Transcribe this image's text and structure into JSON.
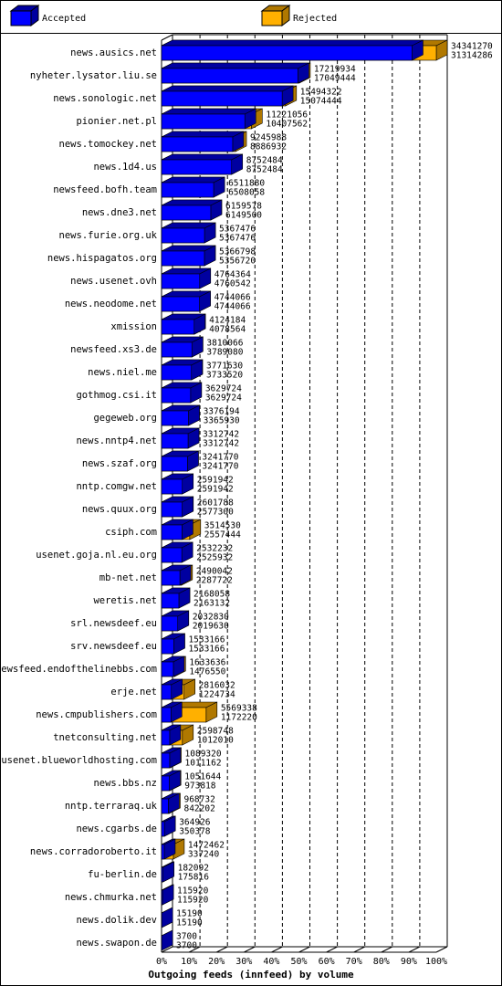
{
  "chart_data": {
    "type": "bar3d-overlap",
    "orientation": "horizontal",
    "title": "Outgoing feeds (innfeed) by volume",
    "categories": [
      "news.ausics.net",
      "nyheter.lysator.liu.se",
      "news.sonologic.net",
      "pionier.net.pl",
      "news.tomockey.net",
      "news.1d4.us",
      "newsfeed.bofh.team",
      "news.dne3.net",
      "news.furie.org.uk",
      "news.hispagatos.org",
      "news.usenet.ovh",
      "news.neodome.net",
      "xmission",
      "newsfeed.xs3.de",
      "news.niel.me",
      "gothmog.csi.it",
      "gegeweb.org",
      "news.nntp4.net",
      "news.szaf.org",
      "nntp.comgw.net",
      "news.quux.org",
      "csiph.com",
      "usenet.goja.nl.eu.org",
      "mb-net.net",
      "weretis.net",
      "srl.newsdeef.eu",
      "srv.newsdeef.eu",
      "newsfeed.endofthelinebbs.com",
      "erje.net",
      "news.cmpublishers.com",
      "tnetconsulting.net",
      "usenet.blueworldhosting.com",
      "news.bbs.nz",
      "nntp.terraraq.uk",
      "news.cgarbs.de",
      "news.corradoroberto.it",
      "fu-berlin.de",
      "news.chmurka.net",
      "news.dolik.dev",
      "news.swapon.de"
    ],
    "series": [
      {
        "name": "Accepted",
        "color": "#0000ff",
        "shade": "#0000a0",
        "values": [
          31314286,
          17049444,
          15074444,
          10407562,
          8886932,
          8752484,
          6508058,
          6149500,
          5367476,
          5356720,
          4760542,
          4744066,
          4078564,
          3789080,
          3733520,
          3629724,
          3365930,
          3312742,
          3241770,
          2591942,
          2577300,
          2557444,
          2525932,
          2287722,
          2163132,
          2019630,
          1533166,
          1476550,
          1224734,
          1172220,
          1012010,
          1011162,
          973818,
          842202,
          350378,
          337240,
          175816,
          115920,
          15190,
          3700
        ]
      },
      {
        "name": "Rejected",
        "color": "#ffb000",
        "shade": "#b07800",
        "values": [
          34341270,
          17219934,
          15494322,
          11221056,
          9245988,
          8752484,
          6511880,
          6159578,
          5367476,
          5366798,
          4764364,
          4744066,
          4124184,
          3810066,
          3771630,
          3629724,
          3376194,
          3312742,
          3241770,
          2591942,
          2601788,
          3514530,
          2532232,
          2490042,
          2168058,
          2032830,
          1533166,
          1633636,
          2816032,
          5569338,
          2598748,
          1089320,
          1051644,
          968732,
          364926,
          1472462,
          182092,
          115920,
          15190,
          3700
        ]
      }
    ],
    "xlim": [
      0,
      100
    ],
    "xticks": [
      {
        "value": 0,
        "label": "0%"
      },
      {
        "value": 10,
        "label": "10%"
      },
      {
        "value": 20,
        "label": "20%"
      },
      {
        "value": 30,
        "label": "30%"
      },
      {
        "value": 40,
        "label": "40%"
      },
      {
        "value": 50,
        "label": "50%"
      },
      {
        "value": 60,
        "label": "60%"
      },
      {
        "value": 70,
        "label": "70%"
      },
      {
        "value": 80,
        "label": "80%"
      },
      {
        "value": 90,
        "label": "90%"
      },
      {
        "value": 100,
        "label": "100%"
      }
    ],
    "grid": true,
    "legend": "top"
  }
}
